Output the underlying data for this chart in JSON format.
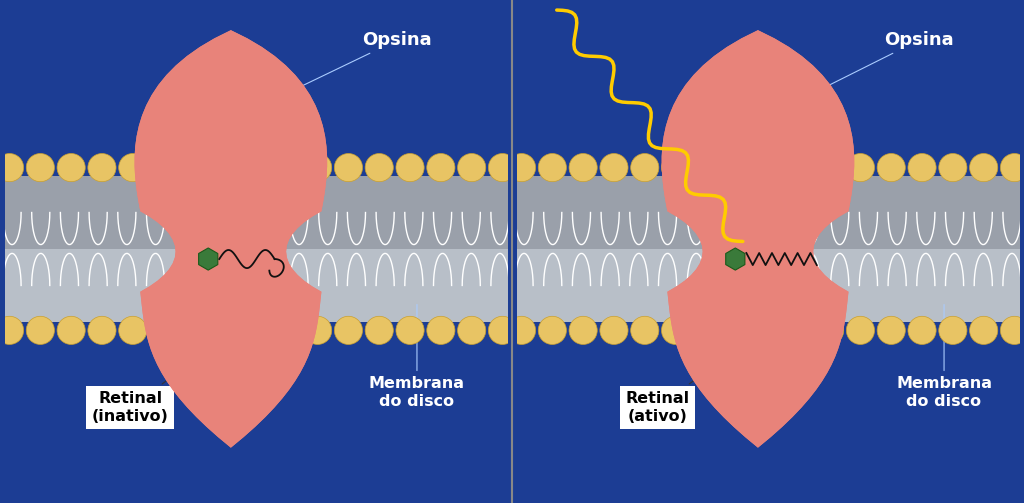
{
  "bg_color": "#1c3d94",
  "protein_color": "#e8837a",
  "membrane_gray_top": "#b8bfc8",
  "membrane_gray_bot": "#9aa0aa",
  "lipid_color": "#e8c464",
  "lipid_edge": "#c9a030",
  "retinal_color": "#3a7a3a",
  "text_color": "#ffffff",
  "label_box_color": "#ffffff",
  "label_text_color": "#000000",
  "light_color": "#ffcc00",
  "divider_color": "#888888",
  "labels_left": {
    "opsina": "Opsina",
    "retinal": "Retinal\n(inativo)",
    "membrana": "Membrana\ndo disco"
  },
  "labels_right": {
    "opsina": "Opsina",
    "retinal": "Retinal\n(ativo)",
    "membrana": "Membrana\ndo disco"
  }
}
